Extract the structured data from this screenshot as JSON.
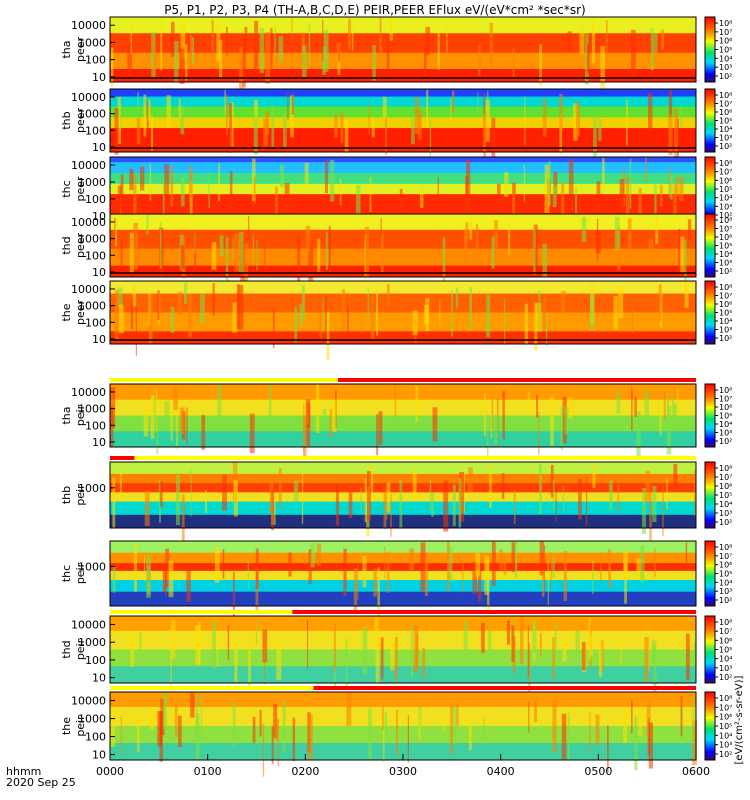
{
  "title": "P5, P1, P2, P3, P4 (TH-A,B,C,D,E) PEIR,PEER EFlux eV/(eV*cm² *sec*sr)",
  "chart_data": {
    "type": "heatmap",
    "title": "P5, P1, P2, P3, P4 (TH-A,B,C,D,E) PEIR,PEER EFlux eV/(eV*cm² *sec*sr)",
    "x_ticks": [
      "0000",
      "0100",
      "0200",
      "0300",
      "0400",
      "0500",
      "0600"
    ],
    "x_range": [
      "0000",
      "0600"
    ],
    "x_label_top": "hhmm",
    "x_label_bottom": "2020 Sep 25",
    "colorbar_ticks": [
      "10⁸",
      "10⁷",
      "10⁶",
      "10⁵",
      "10⁴",
      "10³",
      "10²"
    ],
    "colorbar_units": "[eV/(cm²-s-sr-eV)]",
    "panels": [
      {
        "name": "tha peer",
        "line1": "tha",
        "line2": "peer",
        "yticks": [
          "10000",
          "1000",
          "100",
          "10"
        ],
        "ylog": true,
        "ymin": 5,
        "ymax": 30000
      },
      {
        "name": "thb peer",
        "line1": "thb",
        "line2": "peer",
        "yticks": [
          "10000",
          "1000",
          "100",
          "10"
        ],
        "ylog": true,
        "ymin": 5,
        "ymax": 30000
      },
      {
        "name": "thc peer",
        "line1": "thc",
        "line2": "peer",
        "yticks": [
          "10000",
          "1000",
          "100",
          "10"
        ],
        "ylog": true,
        "ymin": 5,
        "ymax": 30000
      },
      {
        "name": "thd peer",
        "line1": "thd",
        "line2": "peer",
        "yticks": [
          "10000",
          "1000",
          "100",
          "10"
        ],
        "ylog": true,
        "ymin": 5,
        "ymax": 30000
      },
      {
        "name": "the peer",
        "line1": "the",
        "line2": "peer",
        "yticks": [
          "10000",
          "1000",
          "100",
          "10"
        ],
        "ylog": true,
        "ymin": 5,
        "ymax": 30000
      },
      {
        "name": "tha peir",
        "line1": "tha",
        "line2": "peir",
        "yticks": [
          "10000",
          "1000",
          "100",
          "10"
        ],
        "ylog": true,
        "ymin": 5,
        "ymax": 30000
      },
      {
        "name": "thb peir",
        "line1": "thb",
        "line2": "peir",
        "yticks": [
          "1000"
        ],
        "ylog": true,
        "ymin": 5,
        "ymax": 30000
      },
      {
        "name": "thc peir",
        "line1": "thc",
        "line2": "peir",
        "yticks": [
          "1000"
        ],
        "ylog": true,
        "ymin": 5,
        "ymax": 30000
      },
      {
        "name": "thd peir",
        "line1": "thd",
        "line2": "peir",
        "yticks": [
          "10000",
          "1000",
          "100",
          "10"
        ],
        "ylog": true,
        "ymin": 5,
        "ymax": 30000
      },
      {
        "name": "the peir",
        "line1": "the",
        "line2": "peir",
        "yticks": [
          "10000",
          "1000",
          "100",
          "10"
        ],
        "ylog": true,
        "ymin": 5,
        "ymax": 30000
      }
    ],
    "mode_bars": [
      {
        "panel": "tha peir",
        "segments": [
          {
            "from": "0000",
            "to": "0220",
            "color": "#ffff00"
          },
          {
            "from": "0220",
            "to": "0600",
            "color": "#ff0000"
          }
        ]
      },
      {
        "panel": "thb peir",
        "segments": [
          {
            "from": "0000",
            "to": "0015",
            "color": "#ff0000"
          },
          {
            "from": "0015",
            "to": "0600",
            "color": "#ffff00"
          }
        ]
      },
      {
        "panel": "thd peir",
        "segments": [
          {
            "from": "0000",
            "to": "0152",
            "color": "#ffff00"
          },
          {
            "from": "0152",
            "to": "0600",
            "color": "#ff0000"
          }
        ]
      },
      {
        "panel": "the peir",
        "segments": [
          {
            "from": "0000",
            "to": "0205",
            "color": "#ffff00"
          },
          {
            "from": "0205",
            "to": "0600",
            "color": "#ff0000"
          }
        ]
      }
    ]
  }
}
